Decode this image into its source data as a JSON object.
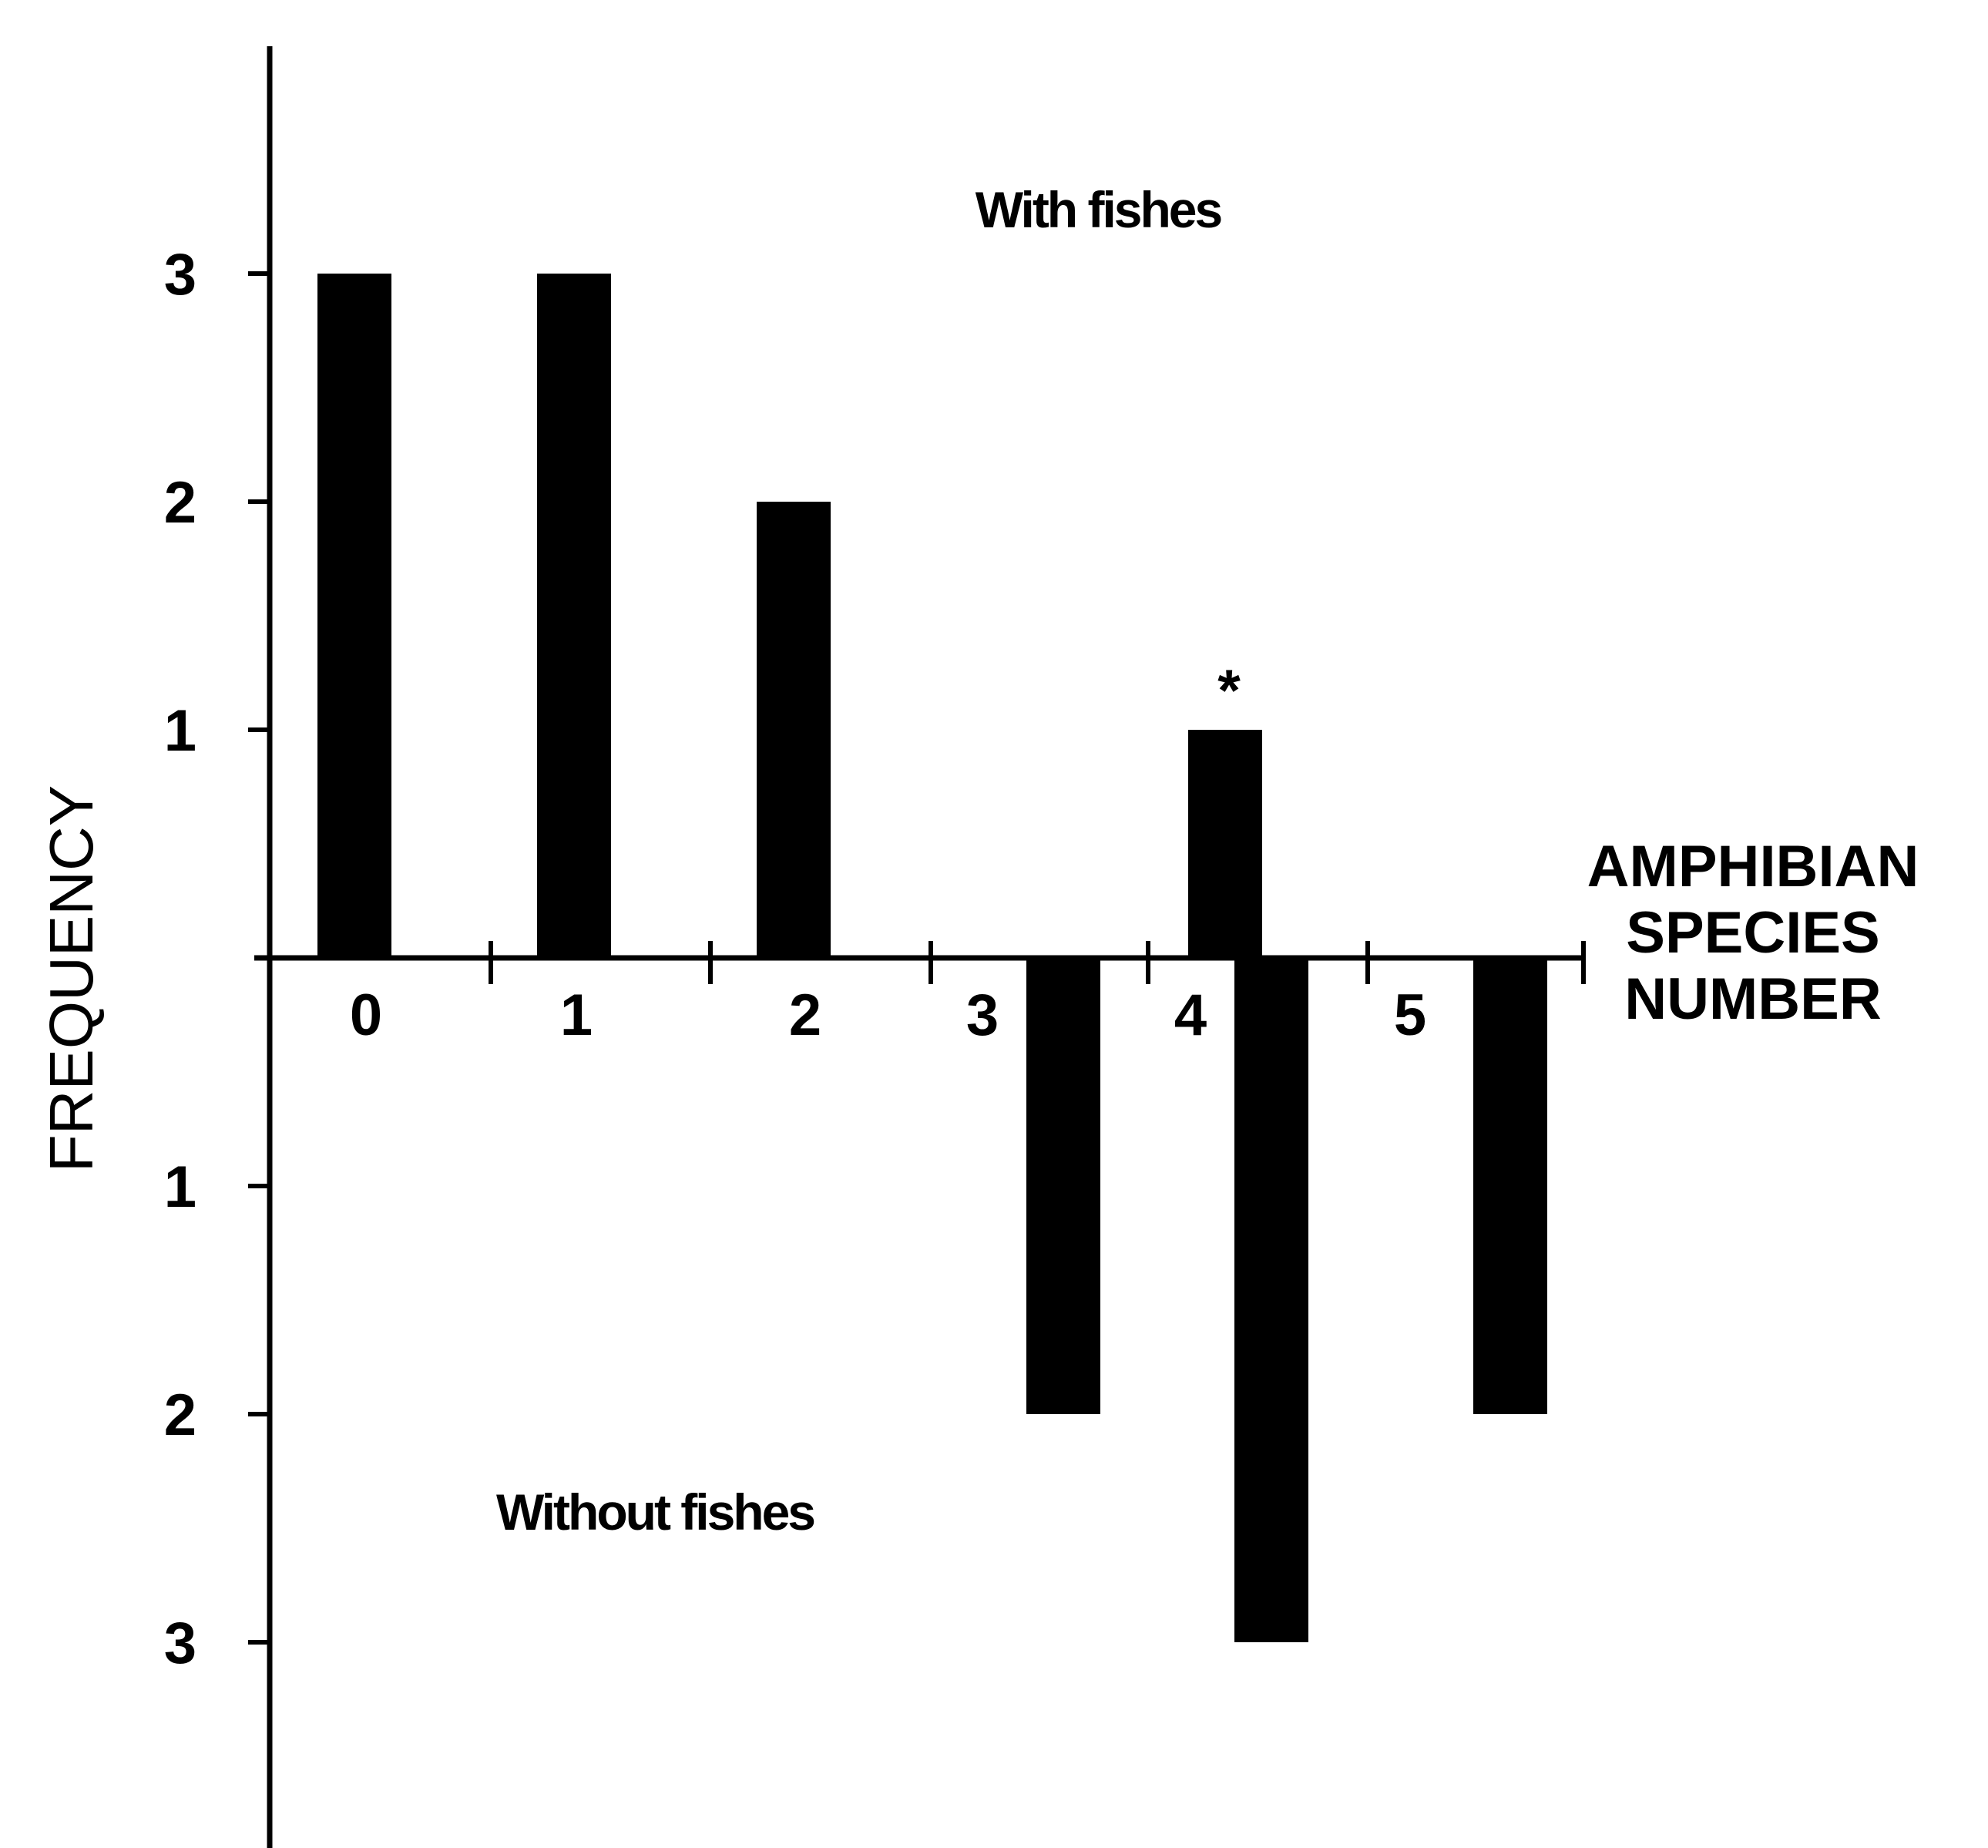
{
  "chart_data": {
    "type": "bar",
    "title": "",
    "xlabel_lines": [
      "AMPHIBIAN",
      "SPECIES",
      "NUMBER"
    ],
    "ylabel": "FREQUENCY",
    "categories": [
      "0",
      "1",
      "2",
      "3",
      "4",
      "5"
    ],
    "series": [
      {
        "name": "With fishes",
        "values": [
          3,
          3,
          2,
          0,
          1,
          0
        ],
        "direction": "up"
      },
      {
        "name": "Without fishes",
        "values": [
          0,
          0,
          0,
          2,
          3,
          2
        ],
        "direction": "down"
      }
    ],
    "ylim_up": [
      0,
      4
    ],
    "ylim_down": [
      0,
      4
    ],
    "yticks_up": [
      "1",
      "2",
      "3"
    ],
    "yticks_down": [
      "1",
      "2",
      "3"
    ],
    "annotation": {
      "text": "*",
      "category": "4",
      "series": "With fishes"
    },
    "colors": {
      "bars": "#000000",
      "axes": "#000000",
      "background": "#ffffff"
    },
    "grid": false,
    "legend": "none"
  }
}
